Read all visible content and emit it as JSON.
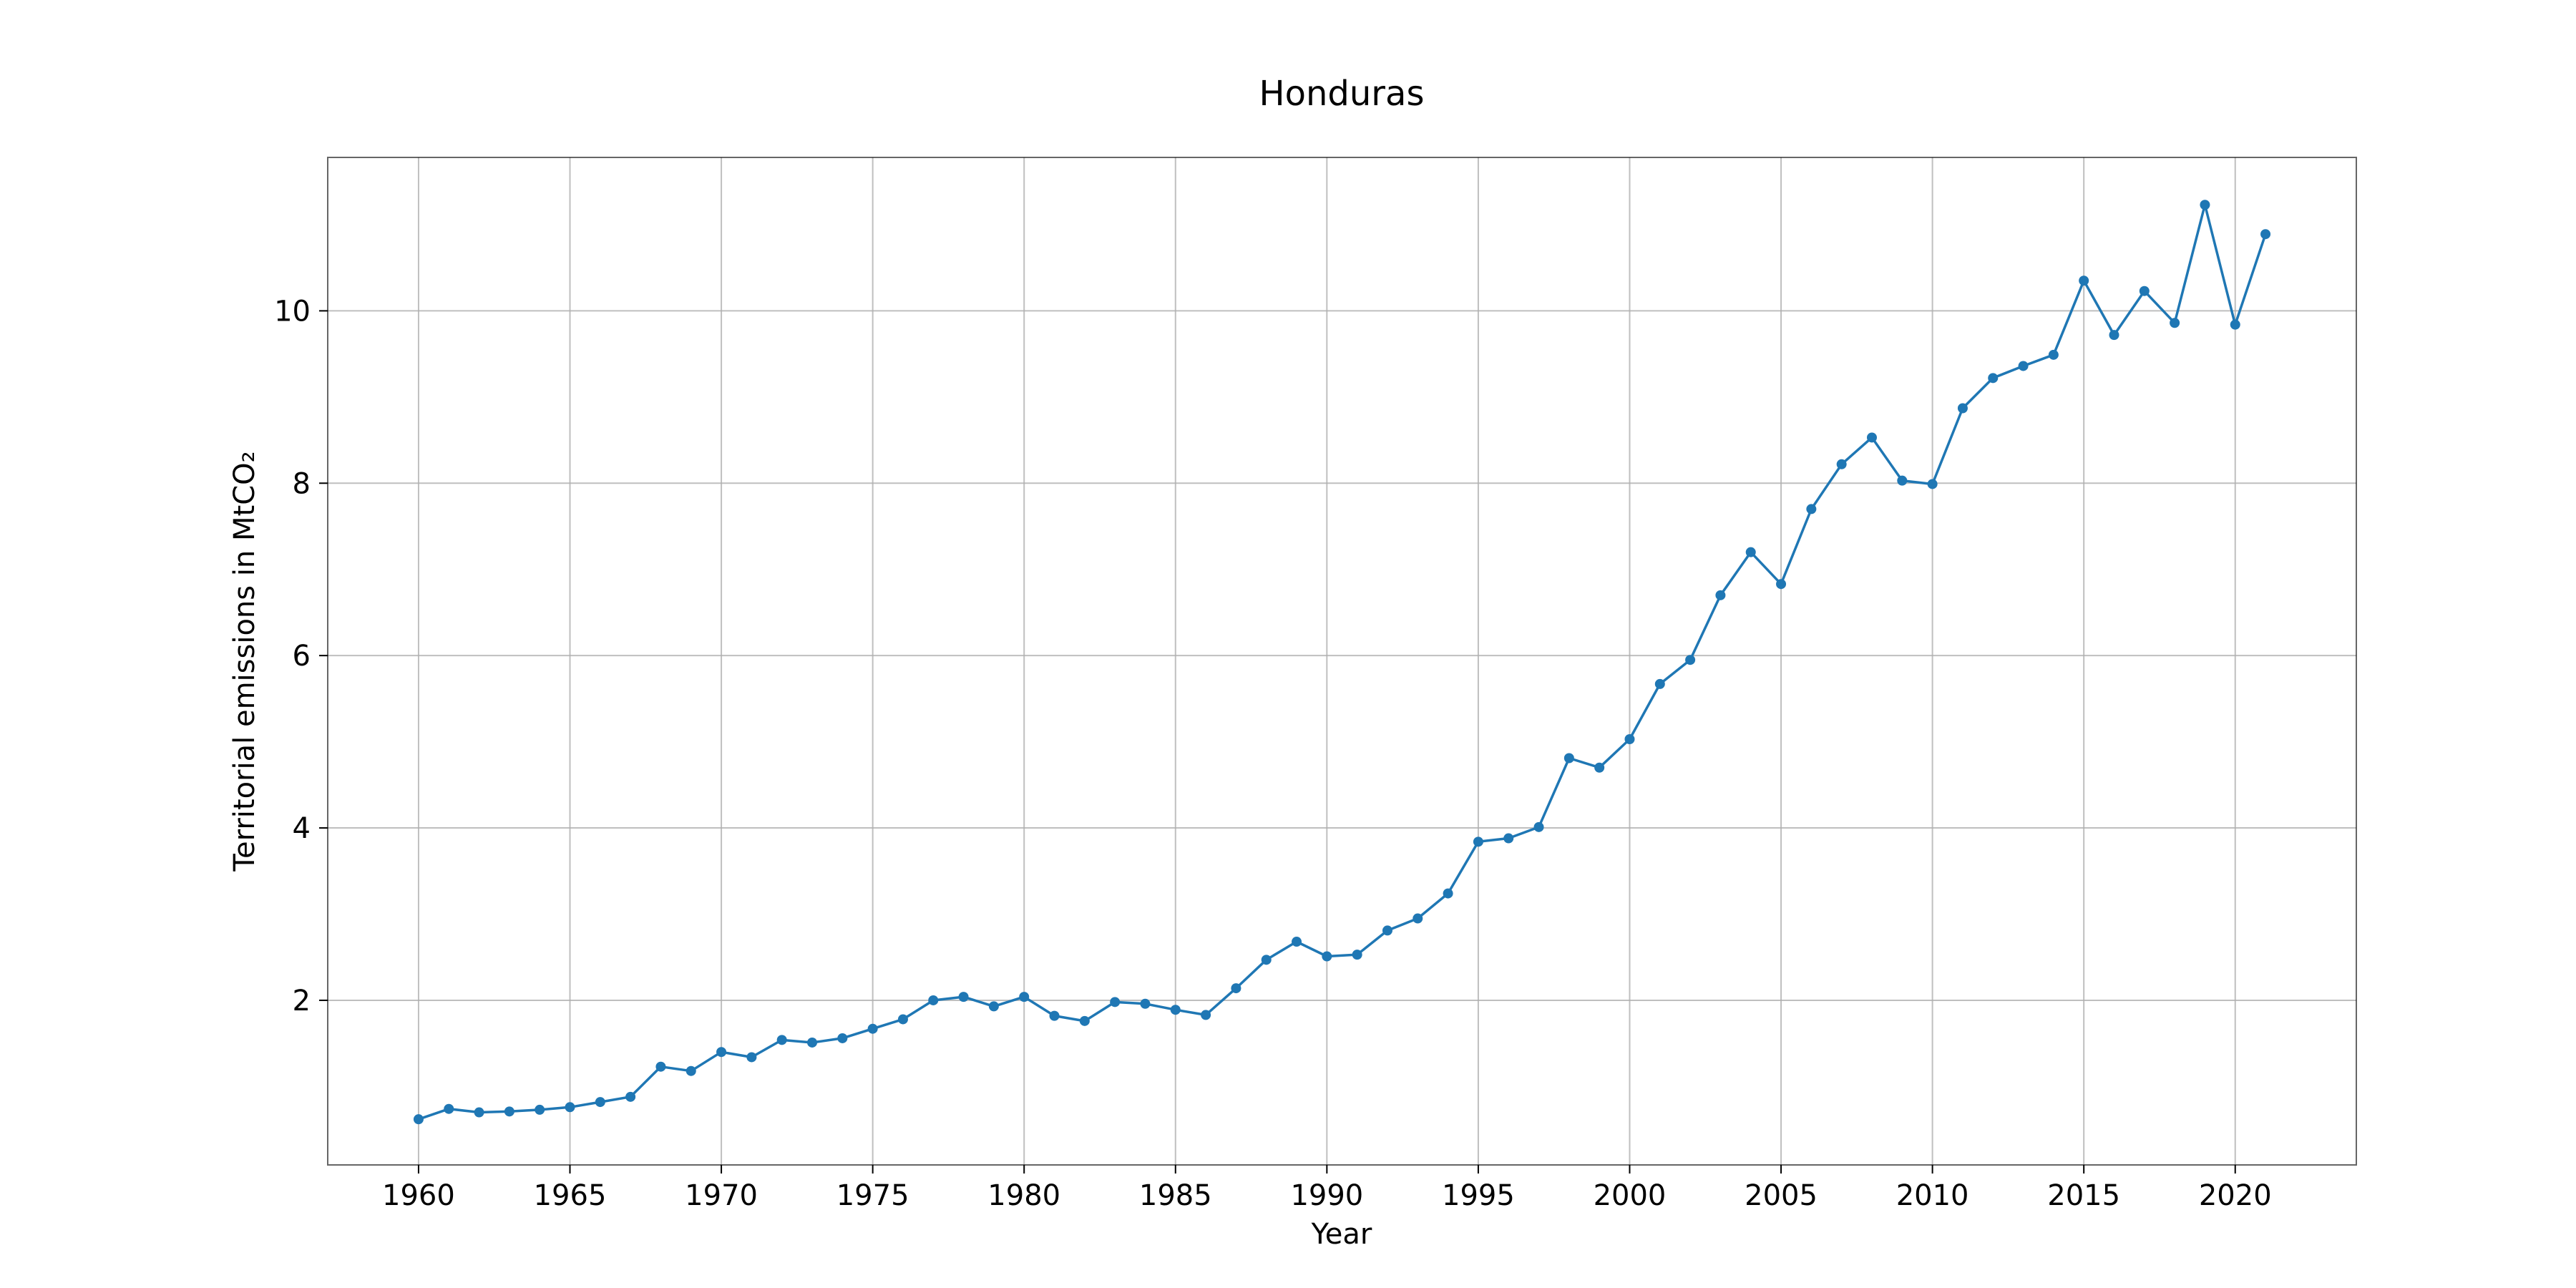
{
  "chart_data": {
    "type": "line",
    "title": "Honduras",
    "xlabel": "Year",
    "ylabel": "Territorial emissions in MtCO₂",
    "xlim": [
      1957,
      2024
    ],
    "ylim": [
      0.09,
      11.78
    ],
    "xticks": [
      1960,
      1965,
      1970,
      1975,
      1980,
      1985,
      1990,
      1995,
      2000,
      2005,
      2010,
      2015,
      2020
    ],
    "xtick_labels": [
      "1960",
      "1965",
      "1970",
      "1975",
      "1980",
      "1985",
      "1990",
      "1995",
      "2000",
      "2005",
      "2010",
      "2015",
      "2020"
    ],
    "yticks": [
      2,
      4,
      6,
      8,
      10
    ],
    "ytick_labels": [
      "2",
      "4",
      "6",
      "8",
      "10"
    ],
    "grid": true,
    "color": "#1f77b4",
    "series": [
      {
        "x": [
          1960,
          1961,
          1962,
          1963,
          1964,
          1965,
          1966,
          1967,
          1968,
          1969,
          1970,
          1971,
          1972,
          1973,
          1974,
          1975,
          1976,
          1977,
          1978,
          1979,
          1980,
          1981,
          1982,
          1983,
          1984,
          1985,
          1986,
          1987,
          1988,
          1989,
          1990,
          1991,
          1992,
          1993,
          1994,
          1995,
          1996,
          1997,
          1998,
          1999,
          2000,
          2001,
          2002,
          2003,
          2004,
          2005,
          2006,
          2007,
          2008,
          2009,
          2010,
          2011,
          2012,
          2013,
          2014,
          2015,
          2016,
          2017,
          2018,
          2019,
          2020,
          2021
        ],
        "values": [
          0.62,
          0.74,
          0.7,
          0.71,
          0.73,
          0.76,
          0.82,
          0.88,
          1.23,
          1.18,
          1.4,
          1.34,
          1.54,
          1.51,
          1.56,
          1.67,
          1.78,
          2.0,
          2.04,
          1.93,
          2.04,
          1.82,
          1.76,
          1.98,
          1.96,
          1.89,
          1.83,
          2.14,
          2.47,
          2.68,
          2.51,
          2.53,
          2.81,
          2.95,
          3.24,
          3.84,
          3.88,
          4.01,
          4.81,
          4.7,
          5.03,
          5.67,
          5.95,
          6.7,
          7.2,
          6.83,
          7.7,
          8.22,
          8.53,
          8.03,
          7.99,
          8.87,
          9.22,
          9.36,
          9.49,
          10.35,
          9.72,
          10.23,
          9.86,
          11.23,
          9.84,
          10.89
        ]
      }
    ]
  }
}
